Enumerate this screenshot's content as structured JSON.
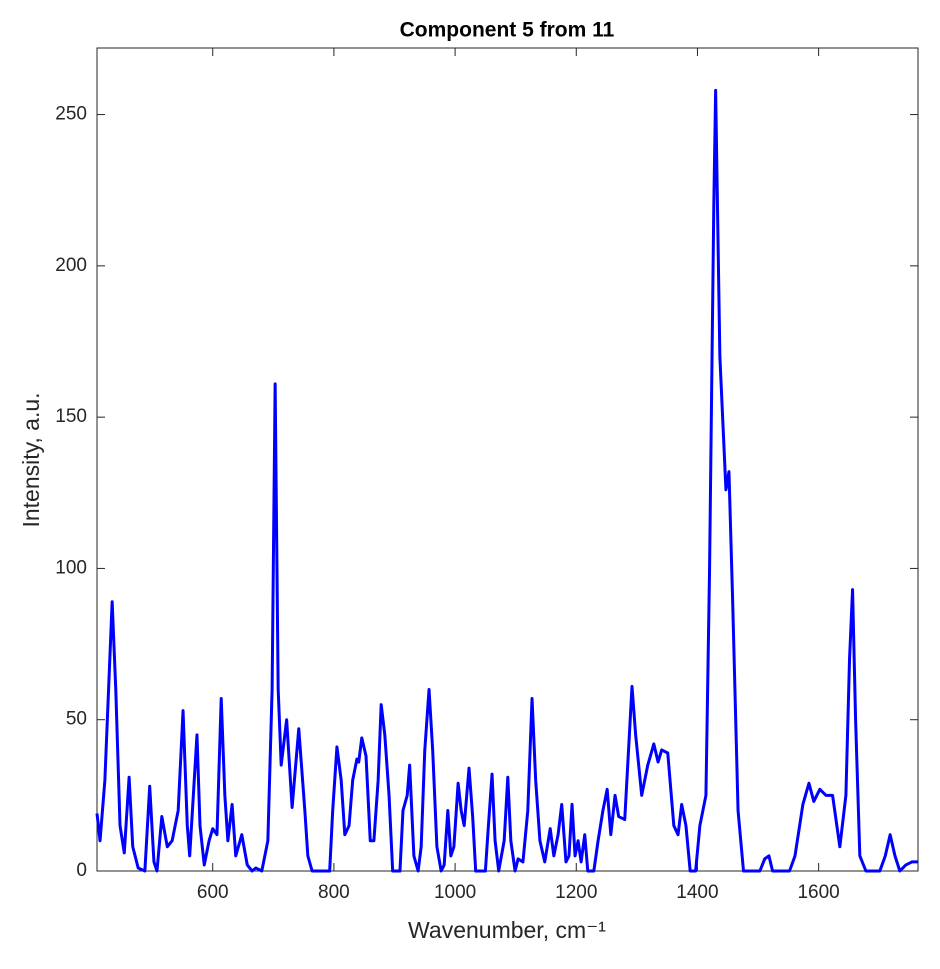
{
  "chart_data": {
    "type": "line",
    "title": "Component 5 from 11",
    "xlabel": "Wavenumber, cm⁻¹",
    "ylabel": "Intensity, a.u.",
    "xlim": [
      409,
      1764
    ],
    "ylim": [
      0,
      272
    ],
    "xticks": [
      600,
      800,
      1000,
      1200,
      1400,
      1600
    ],
    "yticks": [
      0,
      50,
      100,
      150,
      200,
      250
    ],
    "grid": false,
    "series": [
      {
        "color": "#0000ff",
        "x": [
          409,
          414,
          422,
          434,
          440,
          447,
          454,
          462,
          468,
          477,
          488,
          496,
          503,
          508,
          516,
          525,
          533,
          543,
          551,
          558,
          562,
          574,
          579,
          586,
          594,
          600,
          607,
          614,
          620,
          625,
          632,
          638,
          648,
          657,
          665,
          671,
          681,
          691,
          698,
          703,
          708,
          713,
          722,
          731,
          742,
          752,
          757,
          764,
          793,
          798,
          805,
          812,
          818,
          825,
          831,
          838,
          841,
          846,
          853,
          860,
          866,
          873,
          878,
          884,
          891,
          897,
          909,
          914,
          921,
          925,
          932,
          939,
          944,
          950,
          957,
          963,
          970,
          977,
          982,
          988,
          993,
          998,
          1005,
          1010,
          1015,
          1023,
          1029,
          1034,
          1050,
          1055,
          1061,
          1066,
          1072,
          1081,
          1087,
          1092,
          1099,
          1104,
          1112,
          1120,
          1127,
          1133,
          1140,
          1148,
          1157,
          1163,
          1170,
          1176,
          1183,
          1188,
          1193,
          1198,
          1203,
          1208,
          1214,
          1219,
          1229,
          1236,
          1244,
          1251,
          1257,
          1264,
          1270,
          1280,
          1292,
          1298,
          1308,
          1318,
          1328,
          1335,
          1341,
          1351,
          1361,
          1368,
          1374,
          1381,
          1388,
          1397,
          1404,
          1414,
          1420,
          1427,
          1430,
          1437,
          1447,
          1452,
          1458,
          1467,
          1476,
          1503,
          1511,
          1518,
          1524,
          1552,
          1561,
          1574,
          1584,
          1592,
          1602,
          1612,
          1623,
          1635,
          1645,
          1651,
          1656,
          1661,
          1668,
          1678,
          1701,
          1710,
          1718,
          1726,
          1734,
          1744,
          1754,
          1764
        ],
        "values": [
          19,
          10,
          30,
          89,
          60,
          15,
          6,
          31,
          8,
          1,
          0,
          28,
          3,
          0,
          18,
          8,
          10,
          20,
          53,
          15,
          5,
          45,
          15,
          2,
          10,
          14,
          12,
          57,
          25,
          10,
          22,
          5,
          12,
          2,
          0,
          1,
          0,
          10,
          60,
          161,
          60,
          35,
          50,
          21,
          47,
          20,
          5,
          0,
          0,
          20,
          41,
          30,
          12,
          15,
          30,
          37,
          36,
          44,
          38,
          10,
          10,
          30,
          55,
          45,
          25,
          0,
          0,
          20,
          25,
          35,
          5,
          0,
          8,
          40,
          60,
          40,
          8,
          0,
          2,
          20,
          5,
          8,
          29,
          20,
          15,
          34,
          18,
          0,
          0,
          15,
          32,
          10,
          0,
          10,
          31,
          10,
          0,
          4,
          3,
          20,
          57,
          30,
          10,
          3,
          14,
          5,
          12,
          22,
          3,
          5,
          22,
          5,
          10,
          3,
          12,
          0,
          0,
          10,
          20,
          27,
          12,
          25,
          18,
          17,
          61,
          45,
          25,
          35,
          42,
          36,
          40,
          39,
          15,
          12,
          22,
          15,
          0,
          0,
          15,
          25,
          100,
          220,
          258,
          170,
          126,
          132,
          90,
          20,
          0,
          0,
          4,
          5,
          0,
          0,
          5,
          22,
          29,
          23,
          27,
          25,
          25,
          8,
          25,
          70,
          93,
          50,
          5,
          0,
          0,
          5,
          12,
          5,
          0,
          2,
          3,
          3
        ]
      }
    ]
  }
}
